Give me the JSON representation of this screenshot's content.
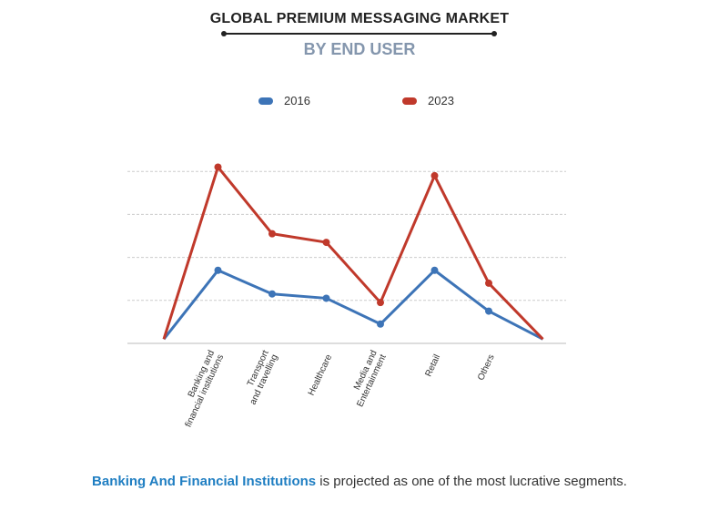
{
  "header": {
    "title": "GLOBAL PREMIUM MESSAGING MARKET",
    "subtitle": "BY END USER"
  },
  "footer": {
    "highlight": "Banking And Financial Institutions",
    "text": " is projected as one of the most lucrative segments."
  },
  "colors": {
    "series_2016": "#3d74b7",
    "series_2023": "#c0392b",
    "grid": "#cccccc",
    "axis": "#bbbbbb"
  },
  "chart_data": {
    "type": "line",
    "title": "GLOBAL PREMIUM MESSAGING MARKET",
    "subtitle": "BY END USER",
    "xlabel": "",
    "ylabel": "",
    "categories": [
      "",
      "Banking and financial institutions",
      "Transport and travelling",
      "Healthcare",
      "Media and Entertainment",
      "Retail",
      "Others",
      ""
    ],
    "category_lines": [
      [],
      [
        "Banking and",
        "financial institutions"
      ],
      [
        "Transport",
        "and travelling"
      ],
      [
        "Healthcare"
      ],
      [
        "Media and",
        "Entertainment"
      ],
      [
        "Retail"
      ],
      [
        "Others"
      ],
      []
    ],
    "ylim": [
      0,
      4
    ],
    "grid": true,
    "y_tick_labels": false,
    "legend": "top-center",
    "series": [
      {
        "name": "2016",
        "color": "#3d74b7",
        "values": [
          0.1,
          1.7,
          1.15,
          1.05,
          0.45,
          1.7,
          0.75,
          0.1
        ]
      },
      {
        "name": "2023",
        "color": "#c0392b",
        "values": [
          0.1,
          4.1,
          2.55,
          2.35,
          0.95,
          3.9,
          1.4,
          0.1
        ]
      }
    ]
  }
}
